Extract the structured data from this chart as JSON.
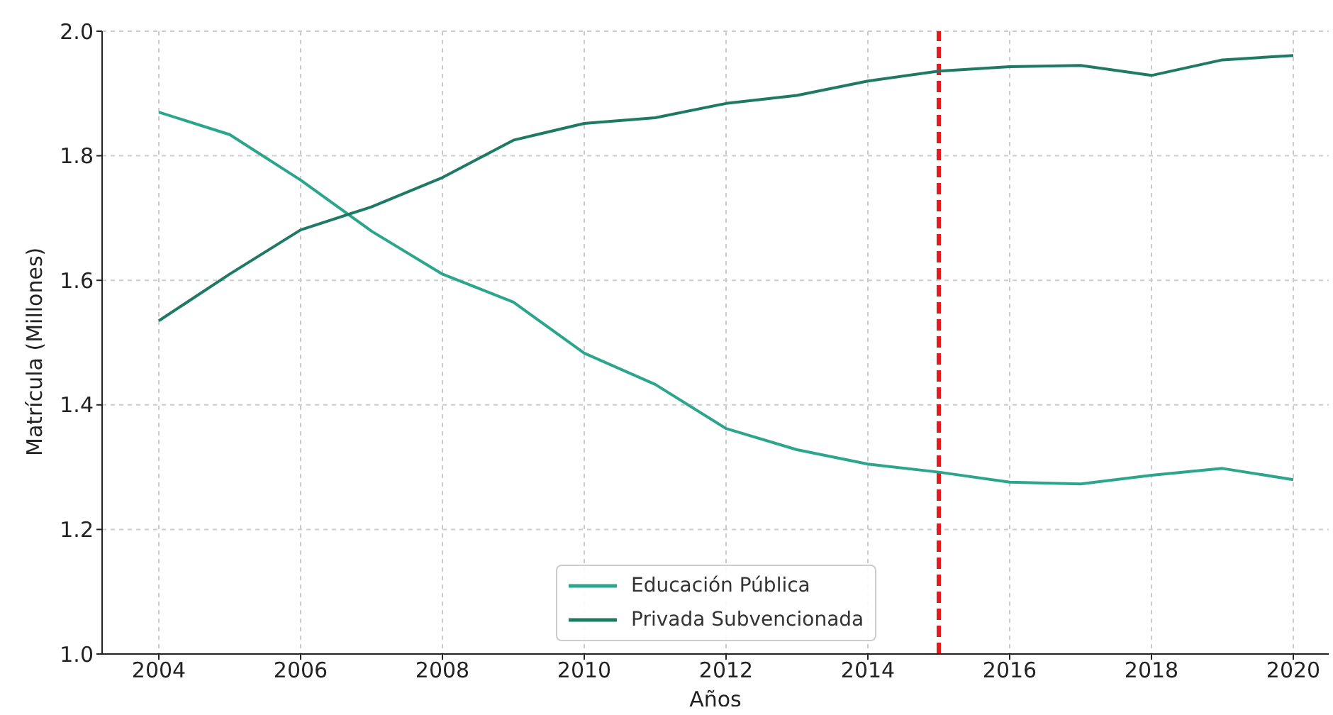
{
  "chart_data": {
    "type": "line",
    "xlabel": "Años",
    "ylabel": "Matrícula (Millones)",
    "x": [
      2004,
      2005,
      2006,
      2007,
      2008,
      2009,
      2010,
      2011,
      2012,
      2013,
      2014,
      2015,
      2016,
      2017,
      2018,
      2019,
      2020
    ],
    "series": [
      {
        "name": "Educación Pública",
        "color": "#2ca58d",
        "values": [
          1.87,
          1.834,
          1.761,
          1.679,
          1.61,
          1.565,
          1.483,
          1.433,
          1.362,
          1.328,
          1.305,
          1.292,
          1.276,
          1.273,
          1.287,
          1.298,
          1.28
        ]
      },
      {
        "name": "Privada Subvencionada",
        "color": "#1f7a65",
        "values": [
          1.535,
          1.61,
          1.681,
          1.718,
          1.765,
          1.825,
          1.852,
          1.861,
          1.884,
          1.897,
          1.92,
          1.936,
          1.943,
          1.945,
          1.929,
          1.954,
          1.961
        ]
      }
    ],
    "xlim": [
      2003.2,
      2020.5
    ],
    "xticks": [
      2004,
      2006,
      2008,
      2010,
      2012,
      2014,
      2016,
      2018,
      2020
    ],
    "ylim": [
      1.0,
      2.0
    ],
    "yticks": [
      {
        "value": 1.0,
        "label": "1.0"
      },
      {
        "value": 1.2,
        "label": "1.2"
      },
      {
        "value": 1.4,
        "label": "1.4"
      },
      {
        "value": 1.6,
        "label": "1.6"
      },
      {
        "value": 1.8,
        "label": "1.8"
      },
      {
        "value": 2.0,
        "label": "2.0"
      }
    ],
    "ref_lines": [
      {
        "axis": "x",
        "value": 2015,
        "color": "#e31a1c",
        "line_style": "dashed"
      }
    ],
    "grid": true,
    "legend": "bottom",
    "marker": "none",
    "line_style": "solid"
  }
}
